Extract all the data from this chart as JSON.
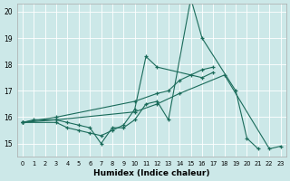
{
  "xlabel": "Humidex (Indice chaleur)",
  "bg_color": "#cce8e8",
  "line_color": "#1a6b5a",
  "grid_color": "#ffffff",
  "xlim": [
    -0.5,
    23.5
  ],
  "ylim": [
    14.5,
    20.3
  ],
  "yticks": [
    15,
    16,
    17,
    18,
    19,
    20
  ],
  "xticks": [
    0,
    1,
    2,
    3,
    4,
    5,
    6,
    7,
    8,
    9,
    10,
    11,
    12,
    13,
    14,
    15,
    16,
    17,
    18,
    19,
    20,
    21,
    22,
    23
  ],
  "series": [
    {
      "x": [
        0,
        1,
        3,
        4,
        5,
        6,
        7,
        8,
        9,
        10,
        11,
        12,
        13,
        15,
        16,
        19,
        20,
        21
      ],
      "y": [
        15.8,
        15.9,
        15.9,
        15.8,
        15.7,
        15.6,
        15.0,
        15.6,
        15.6,
        15.9,
        16.5,
        16.6,
        15.9,
        20.5,
        19.0,
        17.0,
        15.2,
        14.8
      ]
    },
    {
      "x": [
        0,
        3,
        4,
        5,
        6,
        7,
        8,
        9,
        10,
        11,
        12,
        16,
        17
      ],
      "y": [
        15.8,
        15.8,
        15.6,
        15.5,
        15.4,
        15.3,
        15.5,
        15.7,
        16.3,
        18.3,
        17.9,
        17.5,
        17.7
      ]
    },
    {
      "x": [
        0,
        3,
        10,
        12,
        13,
        14,
        15,
        16,
        17
      ],
      "y": [
        15.8,
        16.0,
        16.6,
        16.9,
        17.0,
        17.4,
        17.6,
        17.8,
        17.9
      ]
    },
    {
      "x": [
        0,
        3,
        10,
        12,
        14,
        18,
        22,
        23
      ],
      "y": [
        15.8,
        15.9,
        16.2,
        16.5,
        16.9,
        17.6,
        14.8,
        14.9
      ]
    }
  ]
}
